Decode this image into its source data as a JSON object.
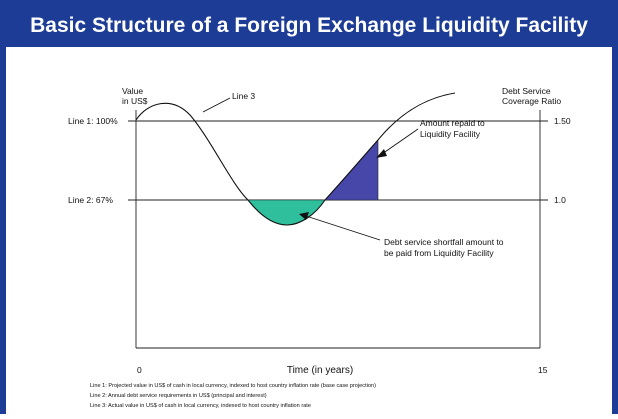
{
  "header": {
    "title": "Basic Structure of a Foreign Exchange Liquidity Facility"
  },
  "diagram": {
    "left_axis_label": [
      "Value",
      "in US$"
    ],
    "right_axis_label": [
      "Debt Service",
      "Coverage Ratio"
    ],
    "curve_label": "Line 3",
    "line1": {
      "label": "Line 1:  100%",
      "right_label": "1.50"
    },
    "line2": {
      "label": "Line 2: 67%",
      "right_label": "1.0"
    },
    "x_start": "0",
    "x_end": "15",
    "x_axis_label": "Time (in years)",
    "repaid_note": [
      "Amount repaid to",
      "Liquidity Facility"
    ],
    "shortfall_note": [
      "Debt service shortfall amount to",
      "be paid from Liquidity Facility"
    ]
  },
  "footnotes": [
    "Line 1:  Projected value in US$ of cash in local currency, indexed to host country inflation rate (base case projection)",
    "Line 2:  Annual debt service requirements in US$ (principal and interest)",
    "Line 3:  Actual value in US$ of cash in local currency, indexed to host country inflation rate"
  ]
}
